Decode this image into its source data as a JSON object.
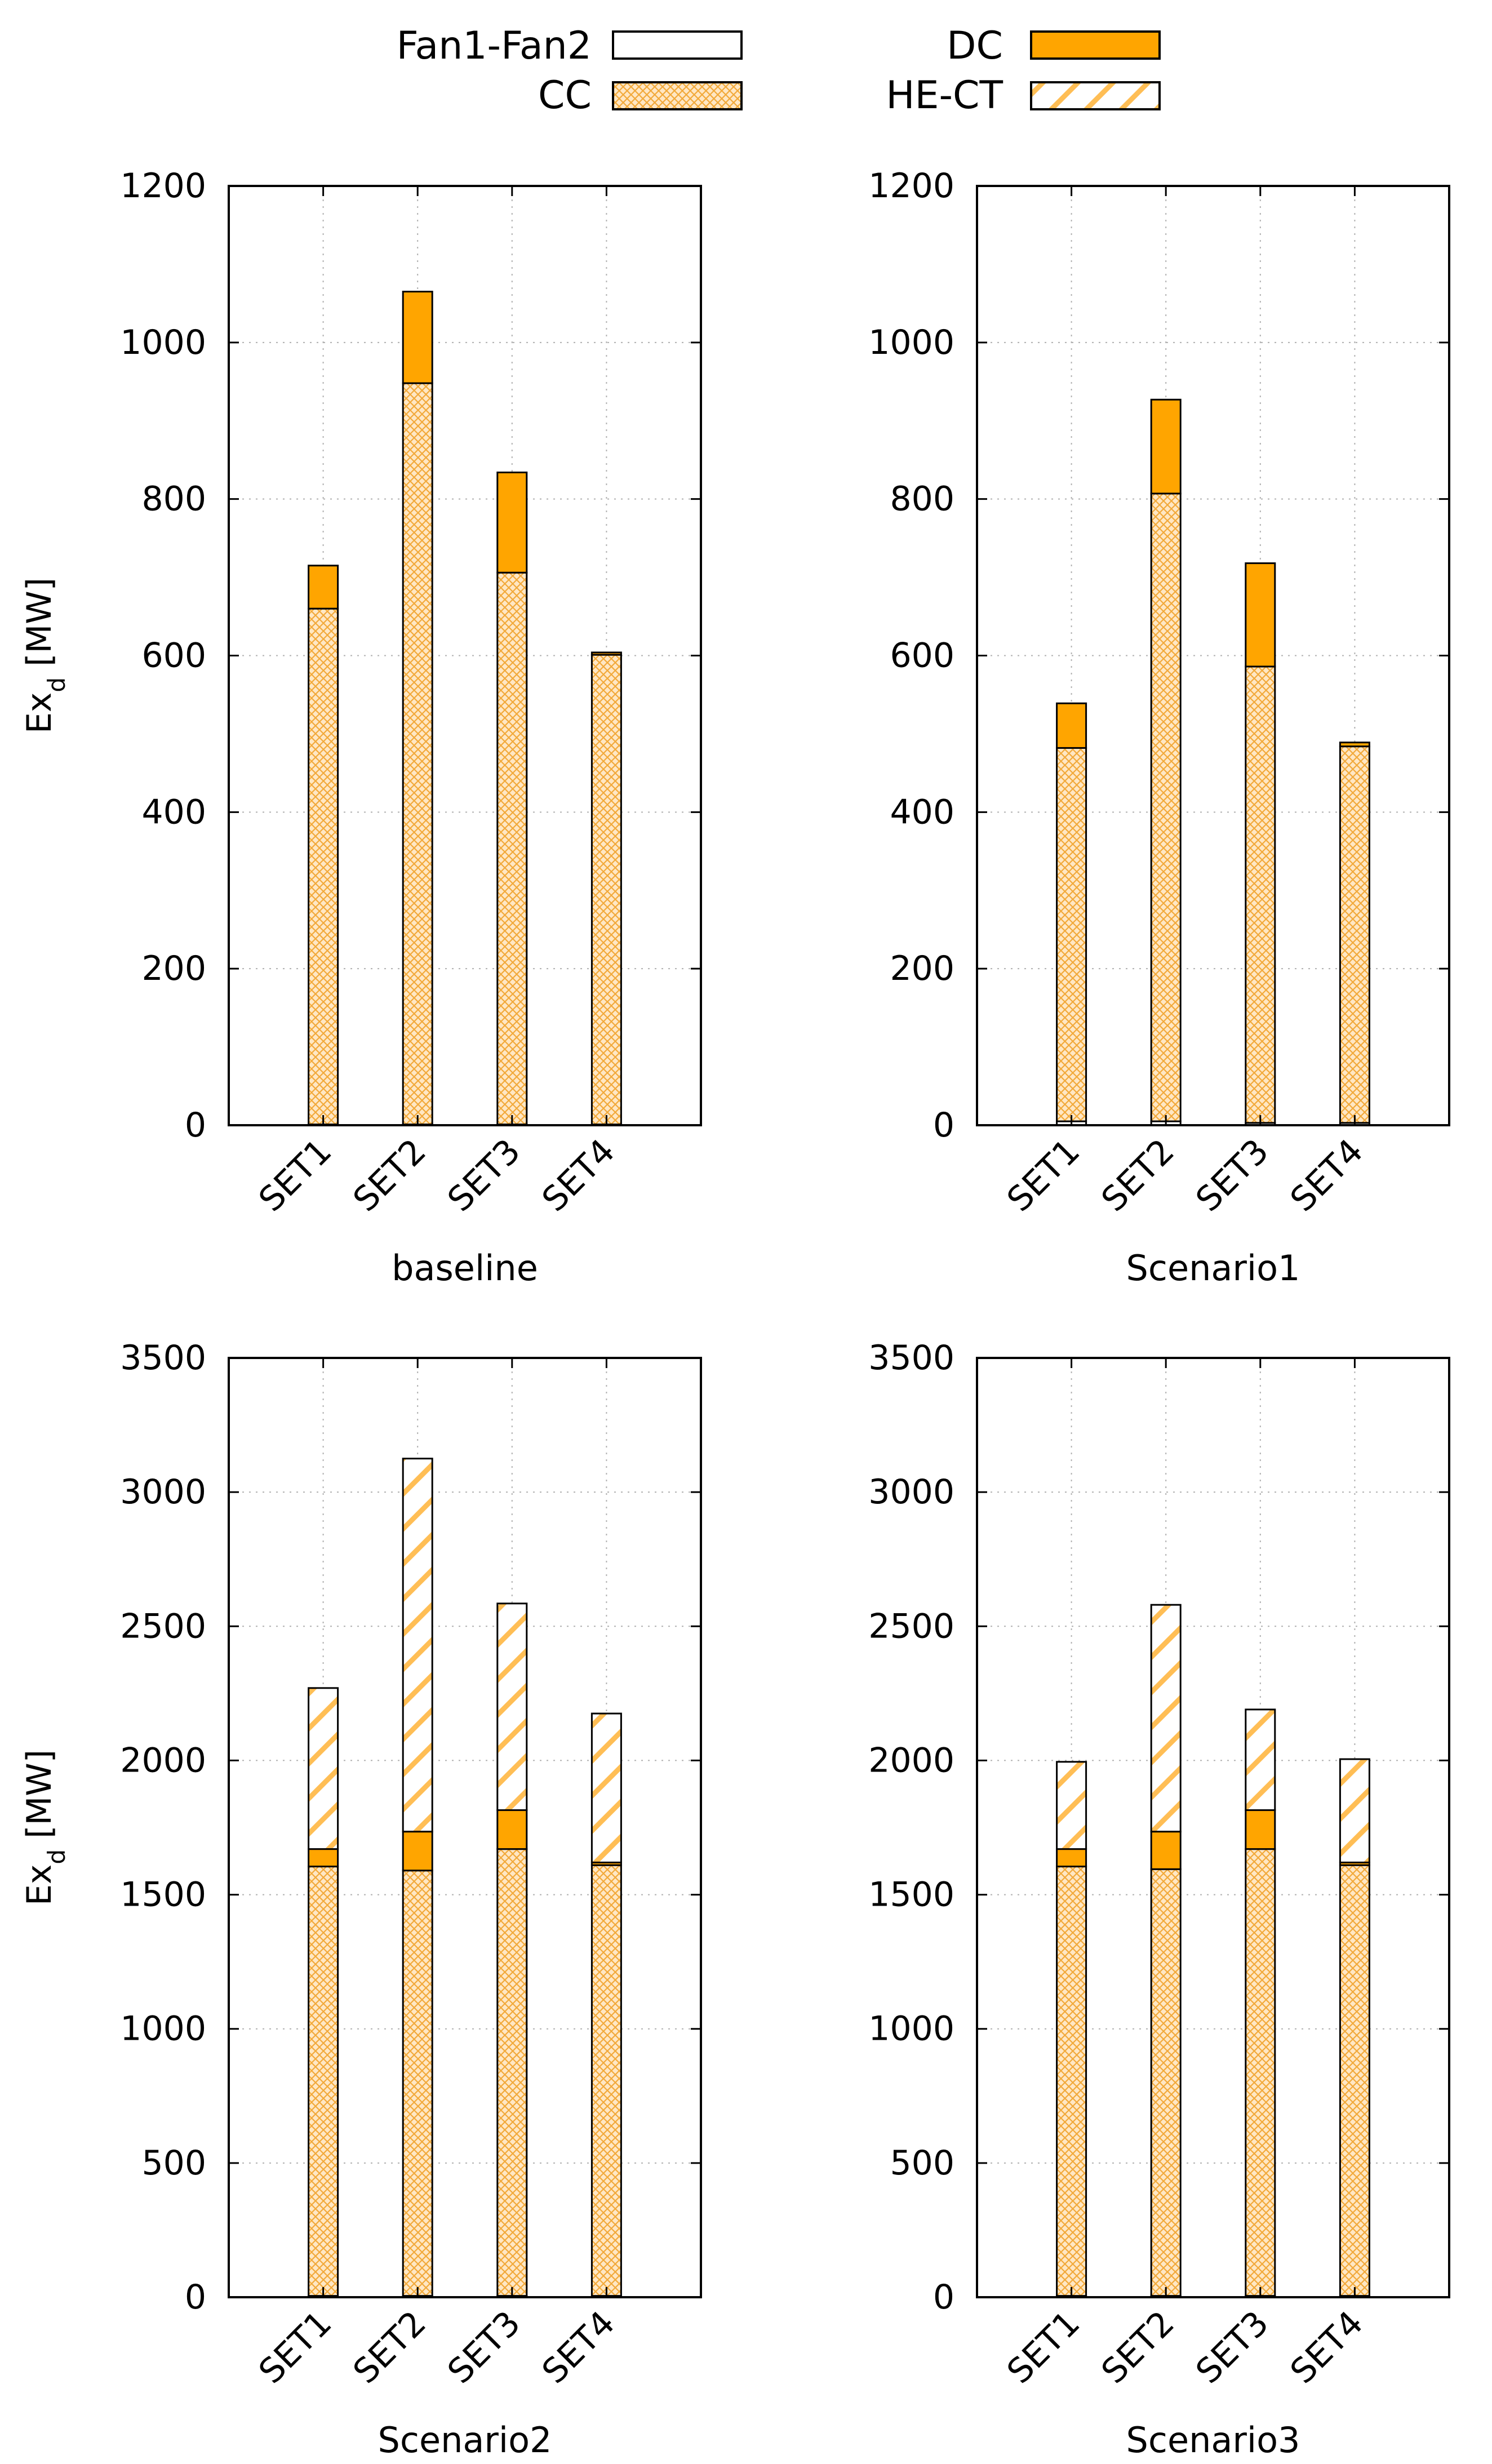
{
  "legend": [
    {
      "key": "fan",
      "label": "Fan1-Fan2"
    },
    {
      "key": "dc",
      "label": "DC"
    },
    {
      "key": "cc",
      "label": "CC"
    },
    {
      "key": "hect",
      "label": "HE-CT"
    }
  ],
  "colors": {
    "orange": "#FFA500",
    "hatch_light": "#FFD59A",
    "axis": "#000000",
    "grid": "#b0b0b0"
  },
  "chart_data": [
    {
      "type": "bar",
      "stacked": true,
      "title": "",
      "xlabel": "baseline",
      "ylabel": "Ex",
      "ylabel_sub": "d",
      "ylabel_unit": " [MW]",
      "ylim": [
        0,
        1200
      ],
      "yticks": [
        0,
        200,
        400,
        600,
        800,
        1000,
        1200
      ],
      "categories": [
        "SET1",
        "SET2",
        "SET3",
        "SET4"
      ],
      "series": [
        {
          "key": "fan",
          "name": "Fan1-Fan2",
          "values": [
            1,
            1,
            1,
            1
          ]
        },
        {
          "key": "cc",
          "name": "CC",
          "values": [
            659,
            947,
            705,
            600
          ]
        },
        {
          "key": "dc",
          "name": "DC",
          "values": [
            55,
            117,
            128,
            3
          ]
        },
        {
          "key": "hect",
          "name": "HE-CT",
          "values": [
            0,
            0,
            0,
            0
          ]
        }
      ]
    },
    {
      "type": "bar",
      "stacked": true,
      "title": "",
      "xlabel": "Scenario1",
      "ylabel": "",
      "ylabel_sub": "",
      "ylabel_unit": "",
      "ylim": [
        0,
        1200
      ],
      "yticks": [
        0,
        200,
        400,
        600,
        800,
        1000,
        1200
      ],
      "categories": [
        "SET1",
        "SET2",
        "SET3",
        "SET4"
      ],
      "series": [
        {
          "key": "fan",
          "name": "Fan1-Fan2",
          "values": [
            5,
            5,
            3,
            3
          ]
        },
        {
          "key": "cc",
          "name": "CC",
          "values": [
            477,
            802,
            583,
            481
          ]
        },
        {
          "key": "dc",
          "name": "DC",
          "values": [
            57,
            120,
            132,
            5
          ]
        },
        {
          "key": "hect",
          "name": "HE-CT",
          "values": [
            0,
            0,
            0,
            0
          ]
        }
      ]
    },
    {
      "type": "bar",
      "stacked": true,
      "title": "",
      "xlabel": "Scenario2",
      "ylabel": "Ex",
      "ylabel_sub": "d",
      "ylabel_unit": " [MW]",
      "ylim": [
        0,
        3500
      ],
      "yticks": [
        0,
        500,
        1000,
        1500,
        2000,
        2500,
        3000,
        3500
      ],
      "categories": [
        "SET1",
        "SET2",
        "SET3",
        "SET4"
      ],
      "series": [
        {
          "key": "fan",
          "name": "Fan1-Fan2",
          "values": [
            5,
            5,
            5,
            5
          ]
        },
        {
          "key": "cc",
          "name": "CC",
          "values": [
            1600,
            1585,
            1665,
            1605
          ]
        },
        {
          "key": "dc",
          "name": "DC",
          "values": [
            65,
            145,
            145,
            10
          ]
        },
        {
          "key": "hect",
          "name": "HE-CT",
          "values": [
            600,
            1390,
            770,
            555
          ]
        }
      ]
    },
    {
      "type": "bar",
      "stacked": true,
      "title": "",
      "xlabel": "Scenario3",
      "ylabel": "",
      "ylabel_sub": "",
      "ylabel_unit": "",
      "ylim": [
        0,
        3500
      ],
      "yticks": [
        0,
        500,
        1000,
        1500,
        2000,
        2500,
        3000,
        3500
      ],
      "categories": [
        "SET1",
        "SET2",
        "SET3",
        "SET4"
      ],
      "series": [
        {
          "key": "fan",
          "name": "Fan1-Fan2",
          "values": [
            5,
            5,
            5,
            5
          ]
        },
        {
          "key": "cc",
          "name": "CC",
          "values": [
            1600,
            1590,
            1665,
            1605
          ]
        },
        {
          "key": "dc",
          "name": "DC",
          "values": [
            65,
            140,
            145,
            10
          ]
        },
        {
          "key": "hect",
          "name": "HE-CT",
          "values": [
            325,
            845,
            375,
            385
          ]
        }
      ]
    }
  ]
}
